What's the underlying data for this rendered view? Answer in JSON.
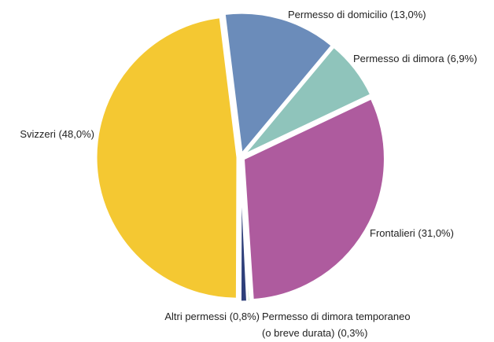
{
  "chart_data": {
    "type": "pie",
    "categories": [
      "Permesso di domicilio",
      "Permesso di dimora",
      "Frontalieri",
      "Permesso di dimora temporaneo (o breve durata)",
      "Altri permessi",
      "Svizzeri"
    ],
    "values": [
      13.0,
      6.9,
      31.0,
      0.3,
      0.8,
      48.0
    ],
    "value_labels": [
      "(13,0%)",
      "(6,9%)",
      "(31,0%)",
      "(0,3%)",
      "(0,8%)",
      "(48,0%)"
    ],
    "colors": [
      "#6b8cba",
      "#8fc4bb",
      "#ae5b9e",
      "#6ab86a",
      "#2e3f7a",
      "#f4c832"
    ]
  }
}
